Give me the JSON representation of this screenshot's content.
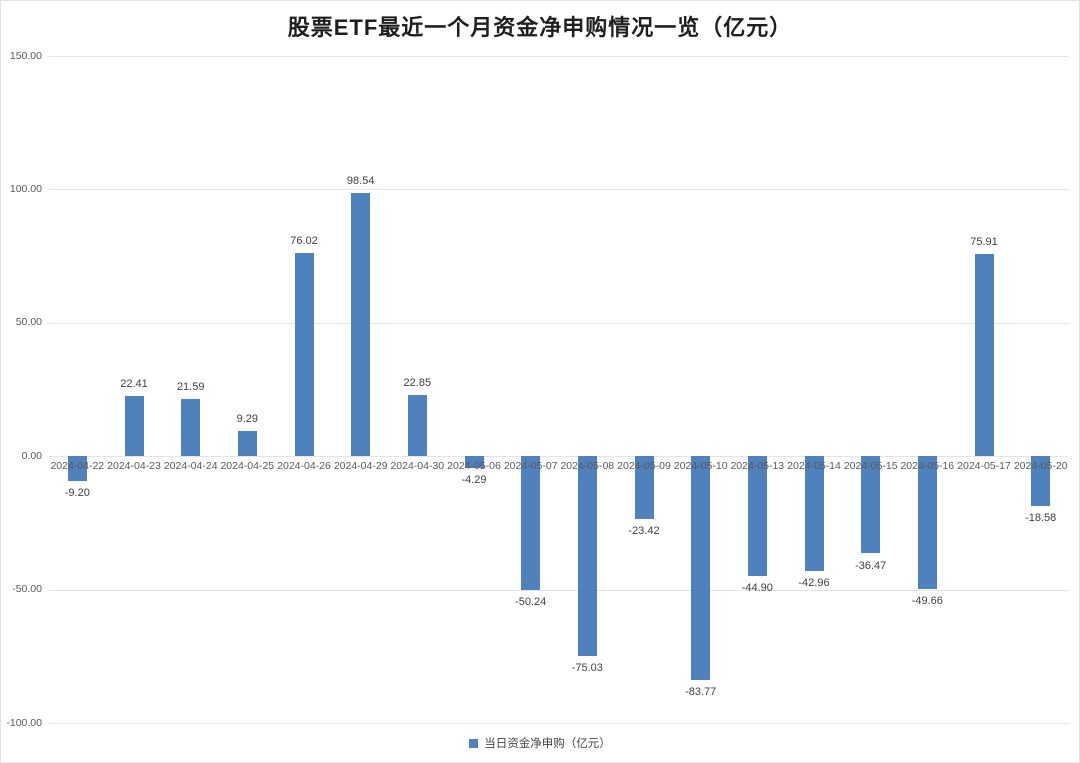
{
  "title": "股票ETF最近一个月资金净申购情况一览（亿元）",
  "legend": {
    "label": "当日资金净申购（亿元）",
    "swatch_color": "#4F81BD"
  },
  "chart_data": {
    "type": "bar",
    "title": "股票ETF最近一个月资金净申购情况一览（亿元）",
    "series_name": "当日资金净申购（亿元）",
    "categories": [
      "2024-04-22",
      "2024-04-23",
      "2024-04-24",
      "2024-04-25",
      "2024-04-26",
      "2024-04-29",
      "2024-04-30",
      "2024-05-06",
      "2024-05-07",
      "2024-05-08",
      "2024-05-09",
      "2024-05-10",
      "2024-05-13",
      "2024-05-14",
      "2024-05-15",
      "2024-05-16",
      "2024-05-17",
      "2024-05-20"
    ],
    "values": [
      -9.2,
      22.41,
      21.59,
      9.29,
      76.02,
      98.54,
      22.85,
      -4.29,
      -50.24,
      -75.03,
      -23.42,
      -83.77,
      -44.9,
      -42.96,
      -36.47,
      -49.66,
      75.91,
      -18.58
    ],
    "xlabel": "",
    "ylabel": "",
    "ylim": [
      -100,
      150
    ],
    "yticks": [
      150,
      100,
      50,
      0,
      -50,
      -100
    ],
    "tick_decimals": 2,
    "grid": true,
    "bar_color": "#4F81BD",
    "value_labels": true,
    "legend_position": "bottom",
    "colors": {
      "gridline": "#e4e4e6",
      "axis_text": "#595959",
      "value_text": "#3f3f3f",
      "title_text": "#1f1f1f"
    }
  }
}
